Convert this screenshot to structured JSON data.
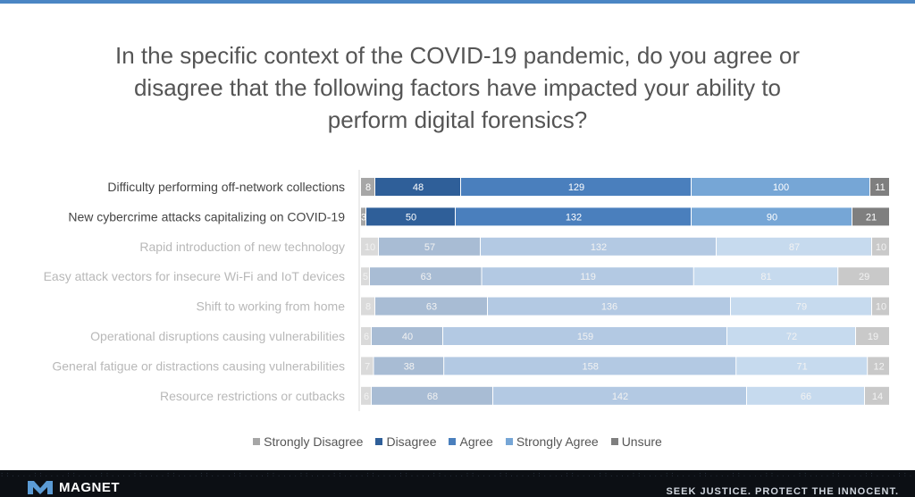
{
  "title": "In the specific context of the COVID-19 pandemic, do you agree or disagree that the following factors have impacted your ability to perform digital forensics?",
  "footer": {
    "brand": "MAGNET",
    "tagline": "SEEK JUSTICE. PROTECT THE INNOCENT."
  },
  "colors": {
    "strongly_disagree": "#a6a6a6",
    "disagree": "#2f5f99",
    "agree": "#4a7fbd",
    "strongly_agree": "#76a6d6",
    "unsure": "#7f7f7f",
    "top_bar": "#4b86c4"
  },
  "chart_data": {
    "type": "bar",
    "orientation": "horizontal",
    "stacked": true,
    "title": "In the specific context of the COVID-19 pandemic, do you agree or disagree that the following factors have impacted your ability to perform digital forensics?",
    "legend_position": "bottom",
    "grid": false,
    "highlighted_categories": [
      0,
      1
    ],
    "categories": [
      "Difficulty performing off-network collections",
      "New cybercrime attacks capitalizing on COVID-19",
      "Rapid introduction of new technology",
      "Easy attack vectors for insecure Wi-Fi and IoT devices",
      "Shift to working from home",
      "Operational disruptions causing vulnerabilities",
      "General fatigue or distractions causing vulnerabilities",
      "Resource restrictions or cutbacks"
    ],
    "series": [
      {
        "name": "Strongly Disagree",
        "values": [
          8,
          3,
          10,
          5,
          8,
          6,
          7,
          6
        ]
      },
      {
        "name": "Disagree",
        "values": [
          48,
          50,
          57,
          63,
          63,
          40,
          38,
          68
        ]
      },
      {
        "name": "Agree",
        "values": [
          129,
          132,
          132,
          119,
          136,
          159,
          158,
          142
        ]
      },
      {
        "name": "Strongly Agree",
        "values": [
          100,
          90,
          87,
          81,
          79,
          72,
          71,
          66
        ]
      },
      {
        "name": "Unsure",
        "values": [
          11,
          21,
          10,
          29,
          10,
          19,
          12,
          14
        ]
      }
    ]
  }
}
